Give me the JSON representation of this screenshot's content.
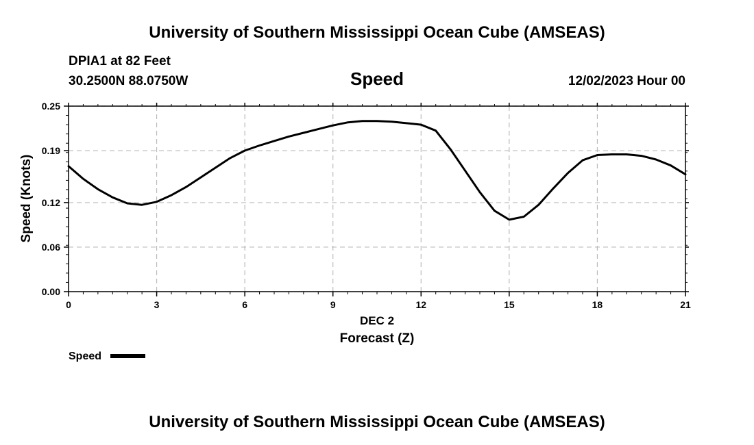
{
  "header": {
    "title": "University of Southern Mississippi Ocean Cube (AMSEAS)",
    "station": "DPIA1 at 82 Feet",
    "coords": "30.2500N  88.0750W",
    "variable": "Speed",
    "datetime": "12/02/2023 Hour 00"
  },
  "footer": {
    "title": "University of Southern Mississippi Ocean Cube (AMSEAS)"
  },
  "legend": {
    "label": "Speed"
  },
  "colors": {
    "line": "#000000",
    "grid": "#bbbbbb",
    "axis": "#000000"
  },
  "chart_data": {
    "type": "line",
    "title": "Speed",
    "xlabel": "Forecast (Z)",
    "xsublabel": "DEC 2",
    "ylabel": "Speed (Knots)",
    "xlim": [
      0,
      21
    ],
    "ylim": [
      0.0,
      0.25
    ],
    "xticks": [
      0,
      3,
      6,
      9,
      12,
      15,
      18,
      21
    ],
    "yticks": [
      0.0,
      0.06,
      0.12,
      0.19,
      0.25
    ],
    "ytick_labels": [
      "0.00",
      "0.06",
      "0.12",
      "0.19",
      "0.25"
    ],
    "grid": true,
    "legend_position": "bottom-left",
    "series": [
      {
        "name": "Speed",
        "x": [
          0,
          0.5,
          1,
          1.5,
          2,
          2.5,
          3,
          3.5,
          4,
          4.5,
          5,
          5.5,
          6,
          6.5,
          7,
          7.5,
          8,
          8.5,
          9,
          9.5,
          10,
          10.5,
          11,
          11.5,
          12,
          12.5,
          13,
          13.5,
          14,
          14.5,
          15,
          15.5,
          16,
          16.5,
          17,
          17.5,
          18,
          18.5,
          19,
          19.5,
          20,
          20.5,
          21
        ],
        "values": [
          0.169,
          0.152,
          0.138,
          0.127,
          0.119,
          0.117,
          0.121,
          0.13,
          0.141,
          0.154,
          0.167,
          0.18,
          0.19,
          0.197,
          0.203,
          0.209,
          0.214,
          0.219,
          0.224,
          0.228,
          0.23,
          0.23,
          0.229,
          0.227,
          0.225,
          0.217,
          0.192,
          0.163,
          0.134,
          0.109,
          0.097,
          0.101,
          0.117,
          0.139,
          0.16,
          0.177,
          0.184,
          0.185,
          0.185,
          0.183,
          0.178,
          0.17,
          0.158
        ]
      }
    ]
  }
}
